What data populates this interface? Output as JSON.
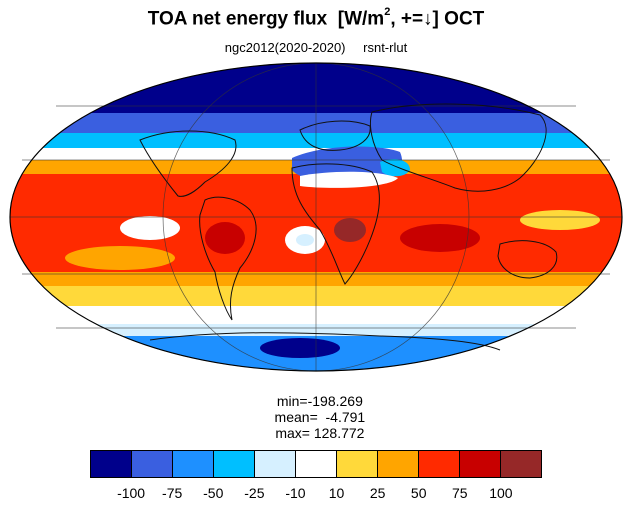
{
  "title": {
    "main": "TOA net energy flux  [W/m",
    "sup": "2",
    "rest": ", +=↓] OCT"
  },
  "subtitle": {
    "run": "ngc2012(2020-2020)",
    "variable": "rsnt-rlut"
  },
  "stats": {
    "min": "min=-198.269",
    "mean": "mean=  -4.791",
    "max": "max= 128.772"
  },
  "colorbar": {
    "colors": [
      "#00008b",
      "#3a5fe0",
      "#1e90ff",
      "#00bfff",
      "#d6f0ff",
      "#ffffff",
      "#ffd93a",
      "#ffa500",
      "#ff2a00",
      "#c80000",
      "#962828"
    ],
    "labels": [
      "-100",
      "-75",
      "-50",
      "-25",
      "-10",
      "10",
      "25",
      "50",
      "75",
      "100"
    ]
  }
}
